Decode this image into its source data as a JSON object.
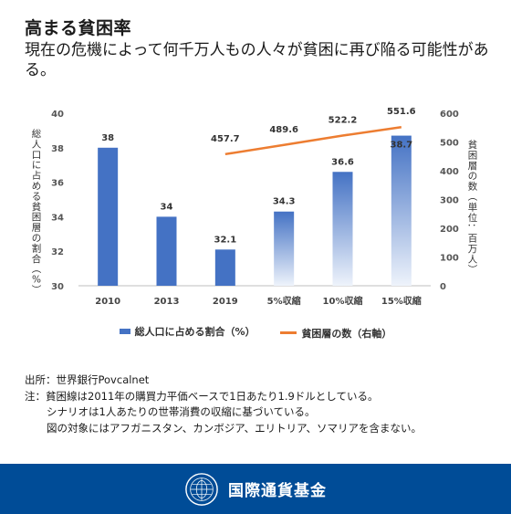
{
  "header": {
    "title": "高まる貧困率",
    "subtitle": "現在の危機によって何千万人もの人々が貧困に再び陥る可能性がある。"
  },
  "chart_data": {
    "type": "bar",
    "categories": [
      "2010",
      "2013",
      "2019",
      "5%収縮",
      "10%収縮",
      "15%収縮"
    ],
    "series": [
      {
        "name": "総人口に占める割合（%）",
        "type": "bar",
        "axis": "left",
        "values": [
          38,
          34,
          32.1,
          34.3,
          36.6,
          38.7
        ],
        "labels": [
          "38",
          "34",
          "32.1",
          "34.3",
          "36.6",
          "38.7"
        ]
      },
      {
        "name": "貧困層の数（右軸）",
        "type": "line",
        "axis": "right",
        "values": [
          null,
          null,
          457.7,
          489.6,
          522.2,
          551.6
        ],
        "labels": [
          "",
          "",
          "457.7",
          "489.6",
          "522.2",
          "551.6"
        ]
      }
    ],
    "ylabel": "総人口に占める貧困層の割合（%）",
    "y2label": "貧困層の数（単位：百万人）",
    "ylim": [
      30,
      40
    ],
    "y2lim": [
      0,
      600
    ],
    "yticks": [
      "30",
      "32",
      "34",
      "36",
      "38",
      "40"
    ],
    "y2ticks": [
      "0",
      "100",
      "200",
      "300",
      "400",
      "500",
      "600"
    ],
    "legend_position": "bottom",
    "grid": false,
    "colors": {
      "bar_solid": "#4472C4",
      "bar_gradient_top": "#4472C4",
      "bar_gradient_bottom": "#EEF3FB",
      "line": "#ED7D31"
    }
  },
  "legend": {
    "bar_label": "総人口に占める割合（%）",
    "line_label": "貧困層の数（右軸）"
  },
  "notes": {
    "source": "出所：世界銀行Povcalnet",
    "note1": "注：貧困線は2011年の購買力平価ベースで1日あたり1.9ドルとしている。",
    "note2": "シナリオは1人あたりの世帯消費の収縮に基づいている。",
    "note3": "図の対象にはアフガニスタン、カンボジア、エリトリア、ソマリアを含まない。"
  },
  "footer": {
    "org_name": "国際通貨基金",
    "logo_icon": "imf-seal-icon"
  }
}
